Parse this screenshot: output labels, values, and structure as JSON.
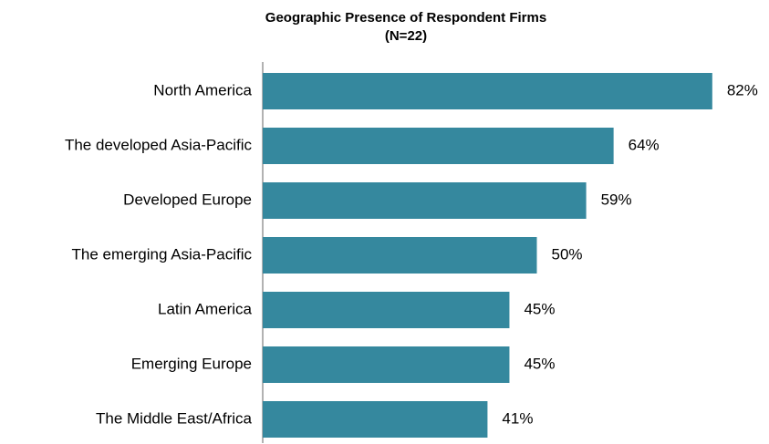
{
  "chart_data": {
    "type": "bar",
    "orientation": "horizontal",
    "title": "Geographic Presence of Respondent Firms",
    "subtitle": "(N=22)",
    "categories": [
      "North America",
      "The developed Asia-Pacific",
      "Developed Europe",
      "The emerging Asia-Pacific",
      "Latin America",
      "Emerging Europe",
      "The Middle East/Africa"
    ],
    "values": [
      82,
      64,
      59,
      50,
      45,
      45,
      41
    ],
    "value_labels": [
      "82%",
      "64%",
      "59%",
      "50%",
      "45%",
      "45%",
      "41%"
    ],
    "color": "#35889e"
  }
}
